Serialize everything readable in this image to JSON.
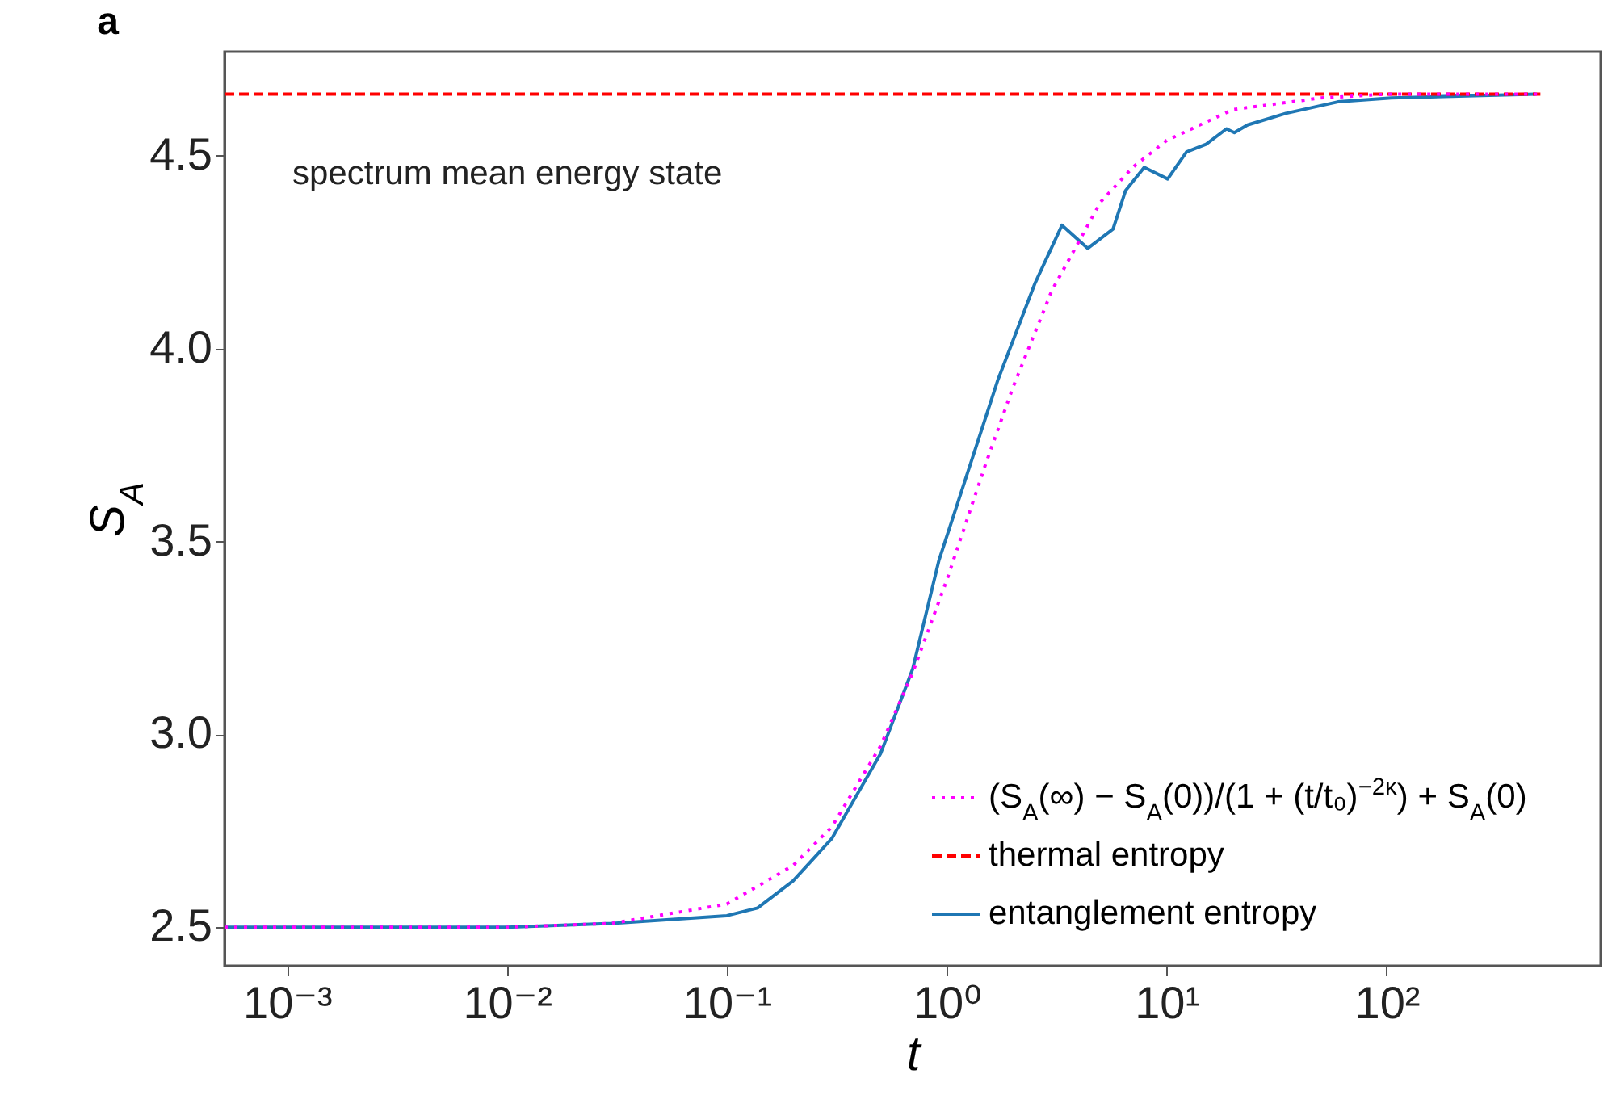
{
  "chart_data": {
    "type": "line",
    "title": "a",
    "xlabel": "t",
    "ylabel": "S$_{A}$",
    "log": "x",
    "xlim": [
      0.00052,
      940
    ],
    "ylim": [
      2.4,
      4.77
    ],
    "xticks": [
      {
        "value": 0.001,
        "label": "10⁻³"
      },
      {
        "value": 0.01,
        "label": "10⁻²"
      },
      {
        "value": 0.1,
        "label": "10⁻¹"
      },
      {
        "value": 1,
        "label": "10⁰"
      },
      {
        "value": 10,
        "label": "10¹"
      },
      {
        "value": 100,
        "label": "10²"
      }
    ],
    "yticks": [
      2.5,
      {
        "value": 3,
        "label": "3.0"
      },
      3.5,
      {
        "value": 4,
        "label": "4.0"
      },
      4.5
    ],
    "grid": false,
    "legend": "bottom right",
    "marker": "none",
    "annotations": [
      "spectrum mean energy state"
    ],
    "series": [
      {
        "name": "(S$_{A}$(∞) − S$_{A}$(0))/(1 + (t/t₀)$^{−2κ}$) + S$_{A}$(0)",
        "color": "#ff00ff",
        "line_style": "dotted",
        "x": [
          0.00052,
          0.001,
          0.01,
          0.03,
          0.1,
          0.2,
          0.3,
          0.5,
          0.7,
          1,
          1.5,
          2,
          3,
          5,
          7,
          10,
          20,
          50,
          100,
          500
        ],
        "values": [
          2.5,
          2.5,
          2.5,
          2.51,
          2.56,
          2.66,
          2.76,
          2.97,
          3.16,
          3.4,
          3.7,
          3.9,
          4.15,
          4.38,
          4.47,
          4.54,
          4.62,
          4.65,
          4.66,
          4.66
        ]
      },
      {
        "name": "thermal entropy",
        "color": "#ff0000",
        "line_style": "dashed",
        "x": [
          0.00052,
          500
        ],
        "values": [
          4.66,
          4.66
        ]
      },
      {
        "name": "entanglement entropy",
        "color": "#1f77b4",
        "line_style": "solid",
        "x": [
          0.00052,
          0.01,
          0.03,
          0.1,
          0.138,
          0.2,
          0.3,
          0.5,
          0.7,
          0.92,
          1.71,
          2.52,
          3.34,
          4.37,
          5.7,
          6.5,
          7.9,
          10.1,
          12.3,
          15.1,
          18.7,
          20.3,
          23.3,
          34.8,
          60,
          105,
          475
        ],
        "values": [
          2.5,
          2.5,
          2.51,
          2.53,
          2.55,
          2.62,
          2.73,
          2.95,
          3.17,
          3.45,
          3.92,
          4.17,
          4.32,
          4.26,
          4.31,
          4.41,
          4.47,
          4.44,
          4.51,
          4.53,
          4.57,
          4.56,
          4.58,
          4.61,
          4.64,
          4.65,
          4.66
        ]
      }
    ]
  }
}
